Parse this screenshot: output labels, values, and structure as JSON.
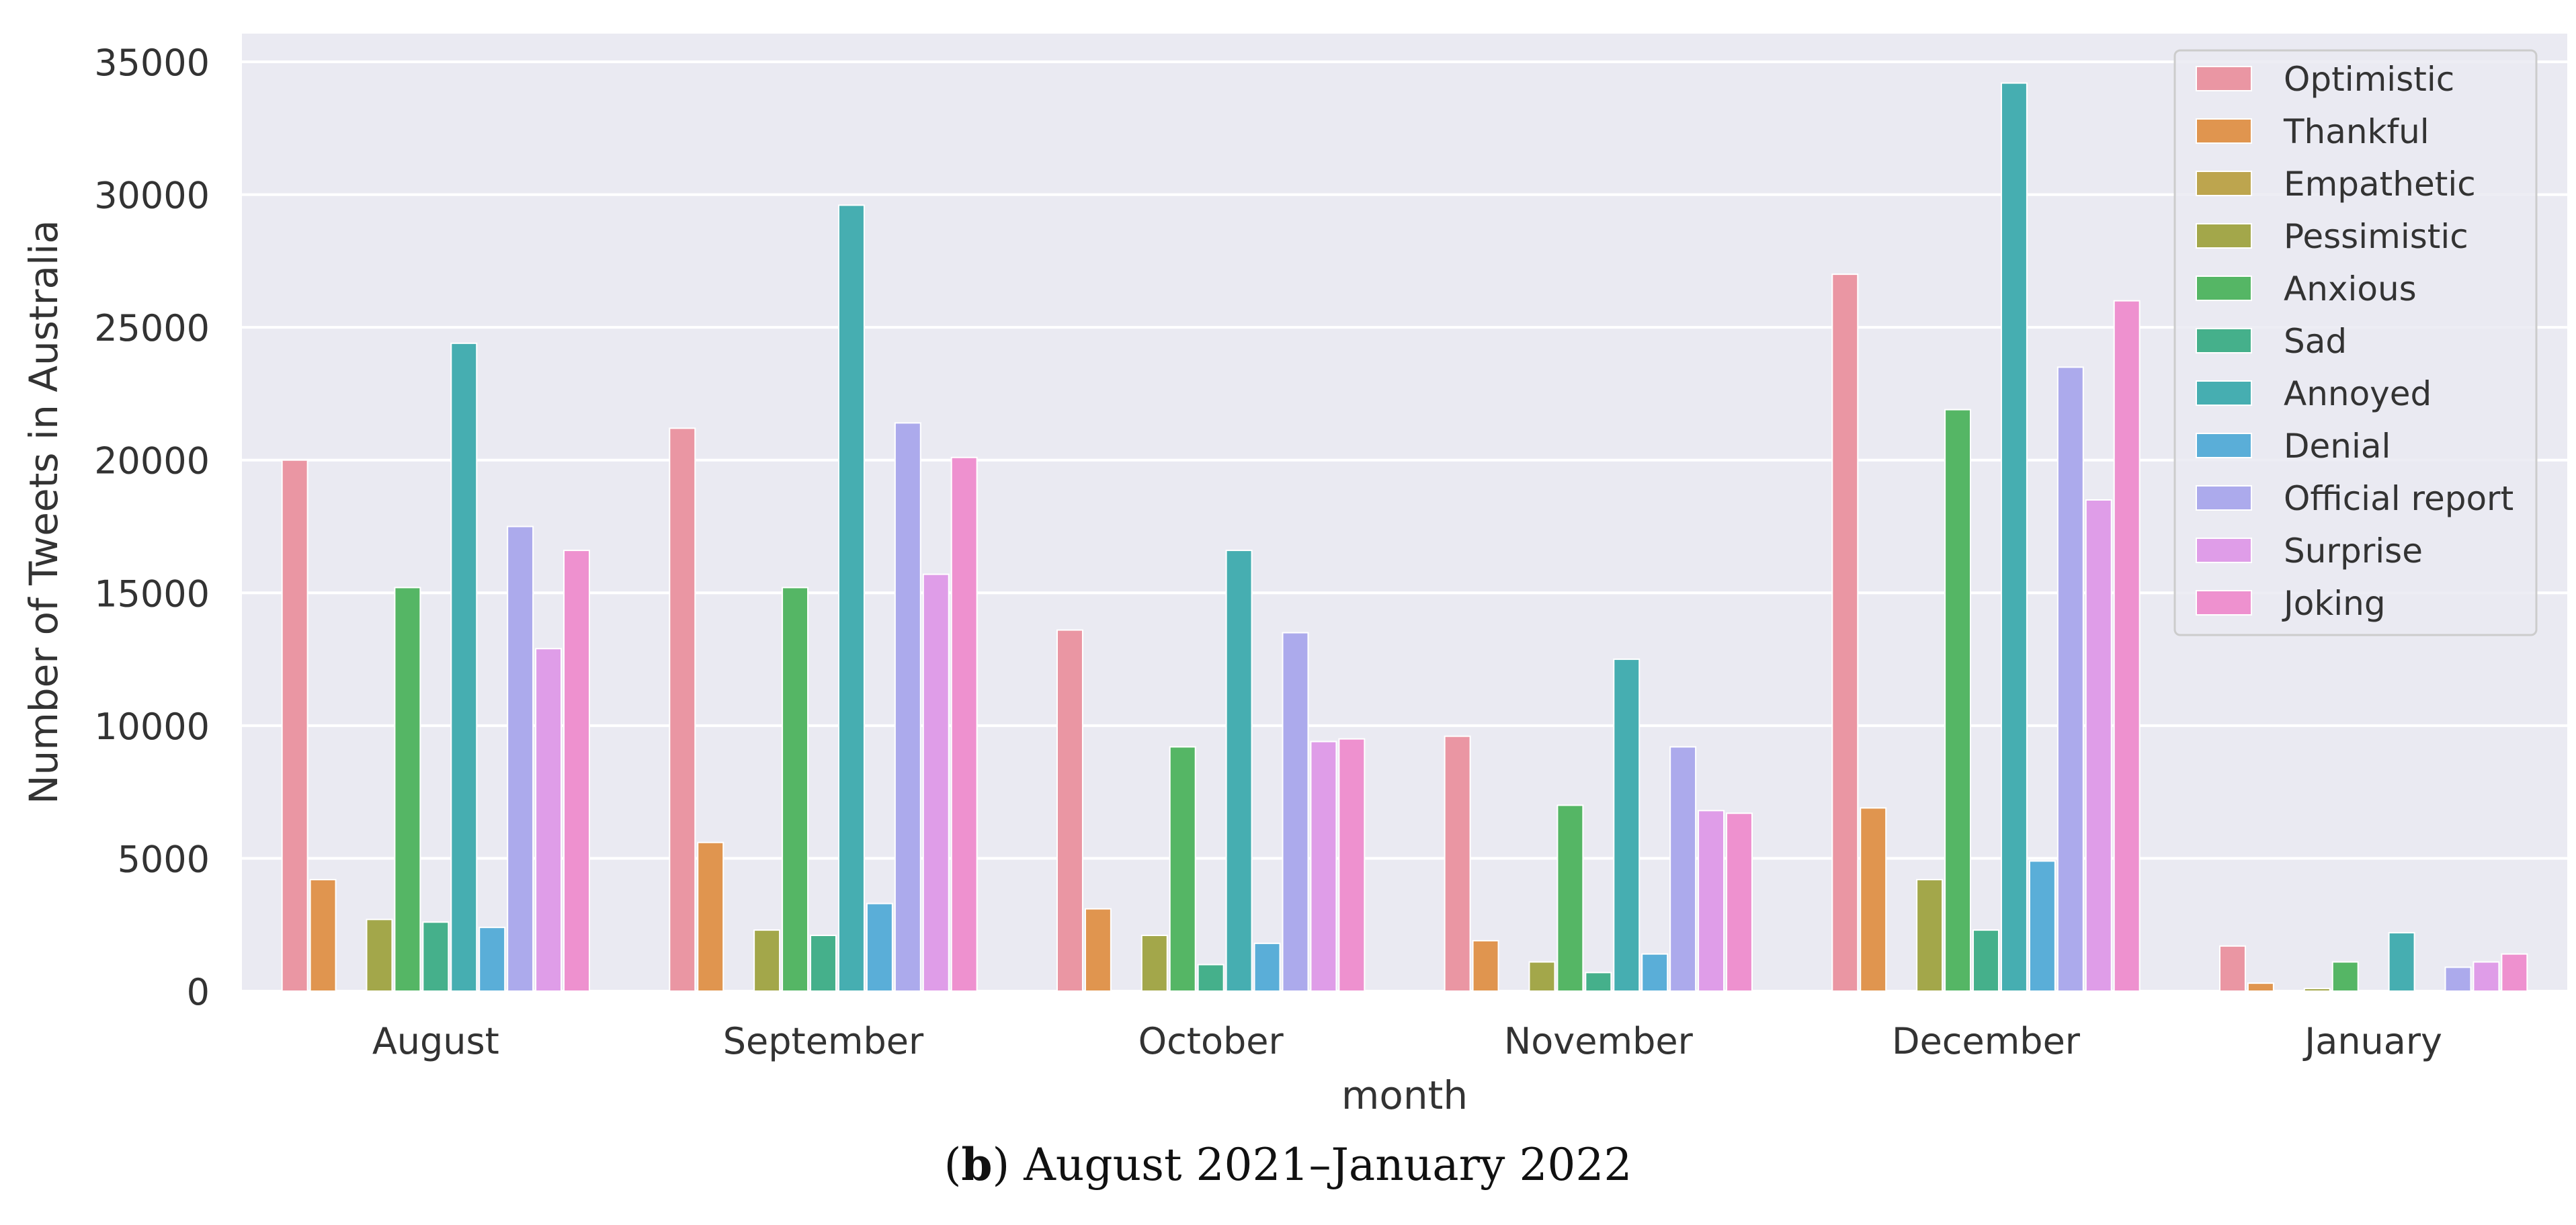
{
  "chart_data": {
    "type": "bar",
    "xlabel": "month",
    "ylabel": "Number of Tweets in Australia",
    "ylim": [
      0,
      36500
    ],
    "yticks": [
      0,
      5000,
      10000,
      15000,
      20000,
      25000,
      30000,
      35000
    ],
    "grid": true,
    "legend_position": "top-right",
    "categories": [
      "August",
      "September",
      "October",
      "November",
      "December",
      "January"
    ],
    "series": [
      {
        "name": "Optimistic",
        "color": "#ea96a3",
        "values": [
          20000,
          21200,
          13600,
          9600,
          27000,
          1700
        ]
      },
      {
        "name": "Thankful",
        "color": "#e0954f",
        "values": [
          4200,
          5600,
          3100,
          1900,
          6900,
          300
        ]
      },
      {
        "name": "Empathetic",
        "color": "#bda54e",
        "values": [
          0,
          0,
          0,
          0,
          0,
          0
        ]
      },
      {
        "name": "Pessimistic",
        "color": "#a3a74a",
        "values": [
          2700,
          2300,
          2100,
          1100,
          4200,
          100
        ]
      },
      {
        "name": "Anxious",
        "color": "#55b665",
        "values": [
          15200,
          15200,
          9200,
          7000,
          21900,
          1100
        ]
      },
      {
        "name": "Sad",
        "color": "#45b08b",
        "values": [
          2600,
          2100,
          1000,
          700,
          2300,
          0
        ]
      },
      {
        "name": "Annoyed",
        "color": "#46aeb1",
        "values": [
          24400,
          29600,
          16600,
          12500,
          34200,
          2200
        ]
      },
      {
        "name": "Denial",
        "color": "#5aaed8",
        "values": [
          2400,
          3300,
          1800,
          1400,
          4900,
          0
        ]
      },
      {
        "name": "Official report",
        "color": "#acaaec",
        "values": [
          17500,
          21400,
          13500,
          9200,
          23500,
          900
        ]
      },
      {
        "name": "Surprise",
        "color": "#df9de8",
        "values": [
          12900,
          15700,
          9400,
          6800,
          18500,
          1100
        ]
      },
      {
        "name": "Joking",
        "color": "#ee91cf",
        "values": [
          16600,
          20100,
          9500,
          6700,
          26000,
          1400
        ]
      }
    ]
  },
  "caption": {
    "open_paren": "(",
    "letter": "b",
    "close_paren": ")",
    "text": " August 2021–January 2022"
  }
}
